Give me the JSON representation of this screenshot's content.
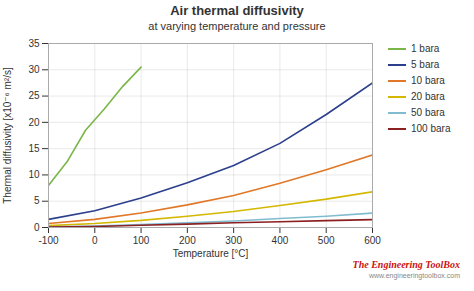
{
  "chart_data": {
    "type": "line",
    "title": "Air thermal diffusivity",
    "subtitle": "at varying temperature and pressure",
    "xlabel": "Temperature [°C]",
    "ylabel": "Thermal diffusivity [x10⁻⁶ m²/s]",
    "xlim": [
      -100,
      600
    ],
    "ylim": [
      0,
      35
    ],
    "xticks": [
      -100,
      0,
      100,
      200,
      300,
      400,
      500,
      600
    ],
    "yticks": [
      0,
      5,
      10,
      15,
      20,
      25,
      30,
      35
    ],
    "grid": true,
    "legend": "right",
    "annotations": [
      {
        "text": "The Engineering ToolBox",
        "color": "#cc1111"
      },
      {
        "text": "www.engineeringtoolbox.com"
      }
    ],
    "series": [
      {
        "name": "1 bara",
        "color": "#7ab648",
        "x": [
          -100,
          -60,
          -20,
          20,
          60,
          100
        ],
        "values": [
          8.0,
          12.5,
          18.5,
          22.5,
          26.8,
          30.5
        ]
      },
      {
        "name": "5 bara",
        "color": "#2b3f8c",
        "x": [
          -100,
          0,
          100,
          200,
          300,
          400,
          500,
          600
        ],
        "values": [
          1.55,
          3.2,
          5.6,
          8.5,
          11.8,
          16.0,
          21.5,
          27.5
        ]
      },
      {
        "name": "10 bara",
        "color": "#e07828",
        "x": [
          -100,
          0,
          100,
          200,
          300,
          400,
          500,
          600
        ],
        "values": [
          0.75,
          1.55,
          2.75,
          4.3,
          6.1,
          8.4,
          11.0,
          13.8
        ]
      },
      {
        "name": "20 bara",
        "color": "#d4b800",
        "x": [
          -100,
          0,
          100,
          200,
          300,
          400,
          500,
          600
        ],
        "values": [
          0.35,
          0.75,
          1.35,
          2.15,
          3.05,
          4.2,
          5.4,
          6.8
        ]
      },
      {
        "name": "50 bara",
        "color": "#80bcd0",
        "x": [
          -100,
          0,
          100,
          200,
          300,
          400,
          500,
          600
        ],
        "values": [
          0.12,
          0.28,
          0.55,
          0.88,
          1.25,
          1.7,
          2.15,
          2.75
        ]
      },
      {
        "name": "100 bara",
        "color": "#8b2020",
        "x": [
          -100,
          0,
          100,
          200,
          300,
          400,
          500,
          600
        ],
        "values": [
          0.08,
          0.2,
          0.42,
          0.65,
          0.9,
          1.1,
          1.3,
          1.5
        ]
      }
    ]
  }
}
